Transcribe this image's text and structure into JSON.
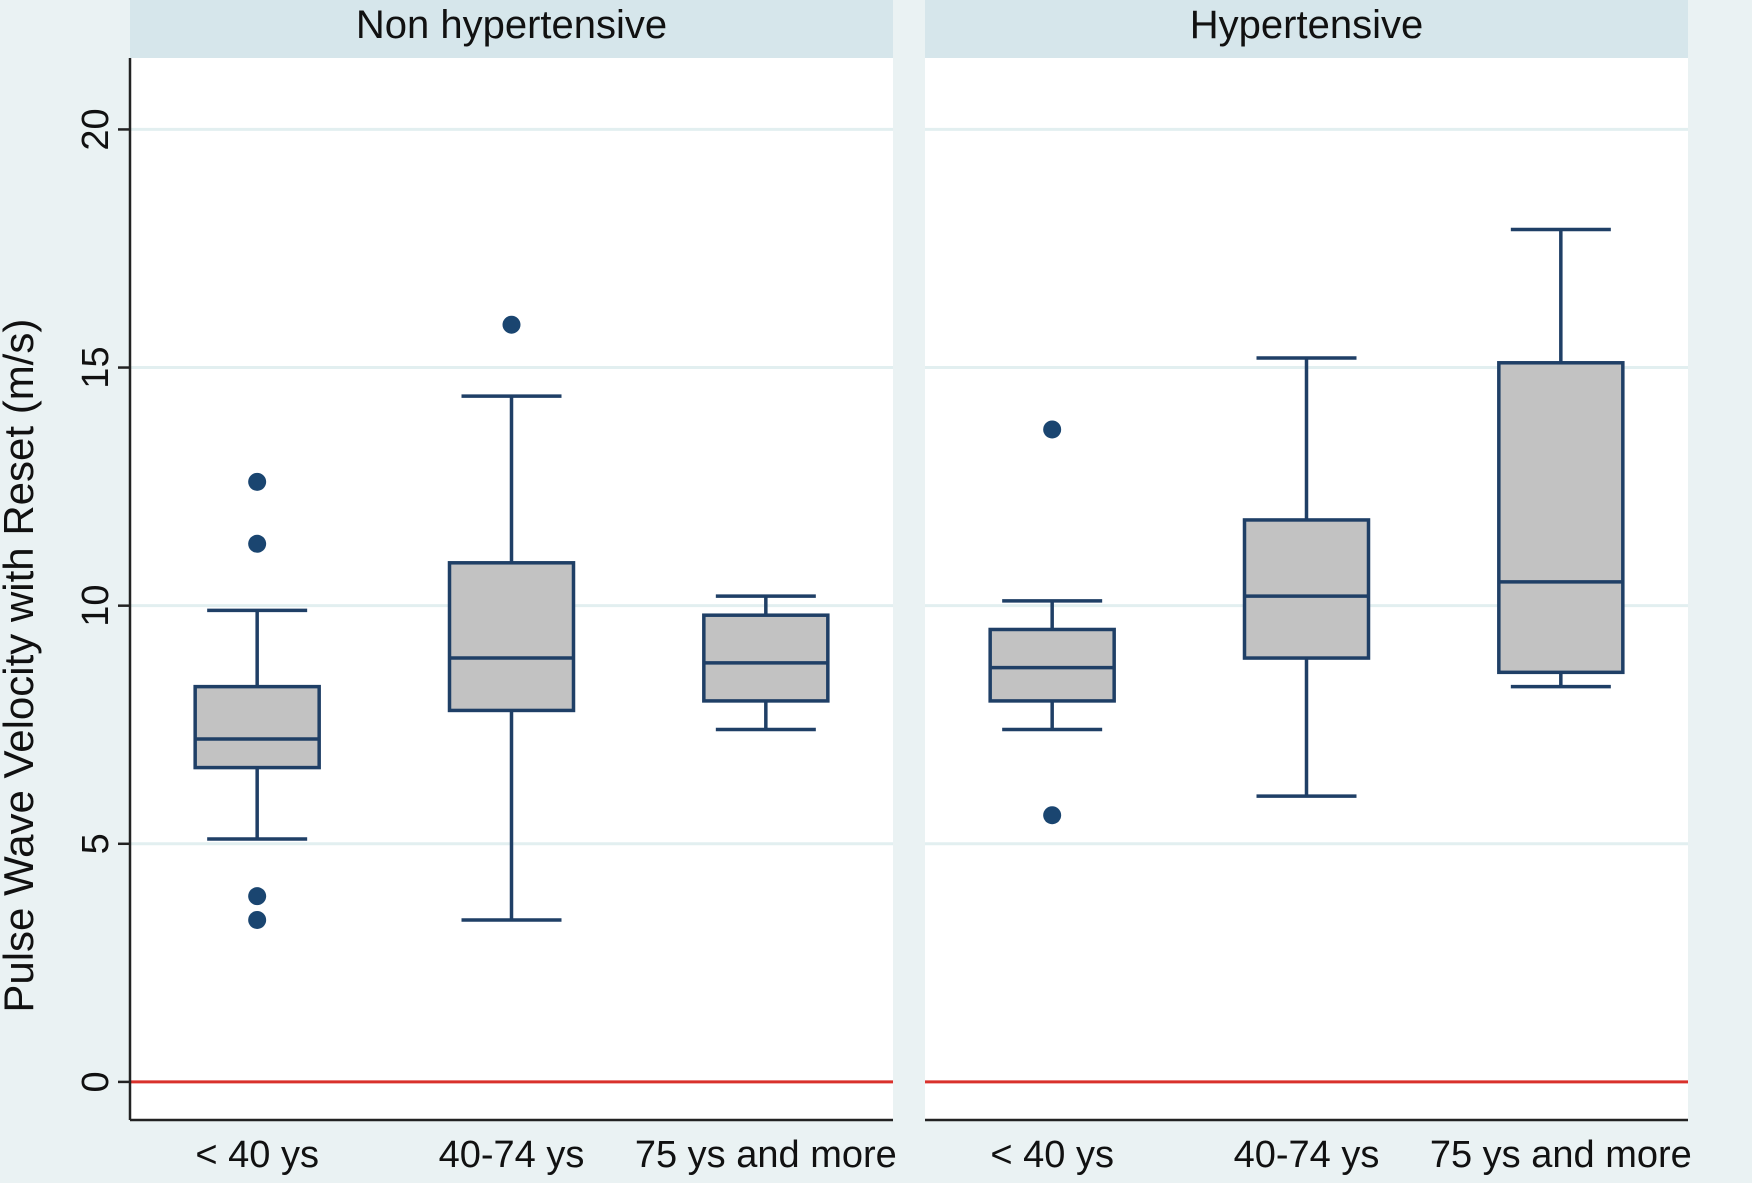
{
  "chart_data": {
    "type": "box",
    "ylabel": "Pulse Wave Velocity with Reset (m/s)",
    "xlabel": "",
    "ylim": [
      -0.8,
      21.5
    ],
    "yticks": [
      0,
      5,
      10,
      15,
      20
    ],
    "grid": true,
    "reference_line": {
      "y": 0,
      "color": "#d9312b"
    },
    "colors": {
      "background": "#eaf2f3",
      "plot_area": "#ffffff",
      "panel_header": "#d6e6eb",
      "gridline": "#e2eff0",
      "box_fill": "#c2c2c2",
      "box_stroke": "#1f3f66",
      "outlier": "#1a4570",
      "axis": "#222222"
    },
    "panels": [
      {
        "title": "Non hypertensive",
        "groups": [
          {
            "category": "< 40 ys",
            "whisker_low": 5.1,
            "q1": 6.6,
            "median": 7.2,
            "q3": 8.3,
            "whisker_high": 9.9,
            "outliers": [
              12.6,
              11.3,
              3.9,
              3.4
            ]
          },
          {
            "category": "40-74 ys",
            "whisker_low": 3.4,
            "q1": 7.8,
            "median": 8.9,
            "q3": 10.9,
            "whisker_high": 14.4,
            "outliers": [
              15.9
            ]
          },
          {
            "category": "75 ys and more",
            "whisker_low": 7.4,
            "q1": 8.0,
            "median": 8.8,
            "q3": 9.8,
            "whisker_high": 10.2,
            "outliers": []
          }
        ]
      },
      {
        "title": "Hypertensive",
        "groups": [
          {
            "category": "< 40 ys",
            "whisker_low": 7.4,
            "q1": 8.0,
            "median": 8.7,
            "q3": 9.5,
            "whisker_high": 10.1,
            "outliers": [
              13.7,
              5.6
            ]
          },
          {
            "category": "40-74 ys",
            "whisker_low": 6.0,
            "q1": 8.9,
            "median": 10.2,
            "q3": 11.8,
            "whisker_high": 15.2,
            "outliers": []
          },
          {
            "category": "75 ys and more",
            "whisker_low": 8.3,
            "q1": 8.6,
            "median": 10.5,
            "q3": 15.1,
            "whisker_high": 17.9,
            "outliers": []
          }
        ]
      }
    ]
  }
}
